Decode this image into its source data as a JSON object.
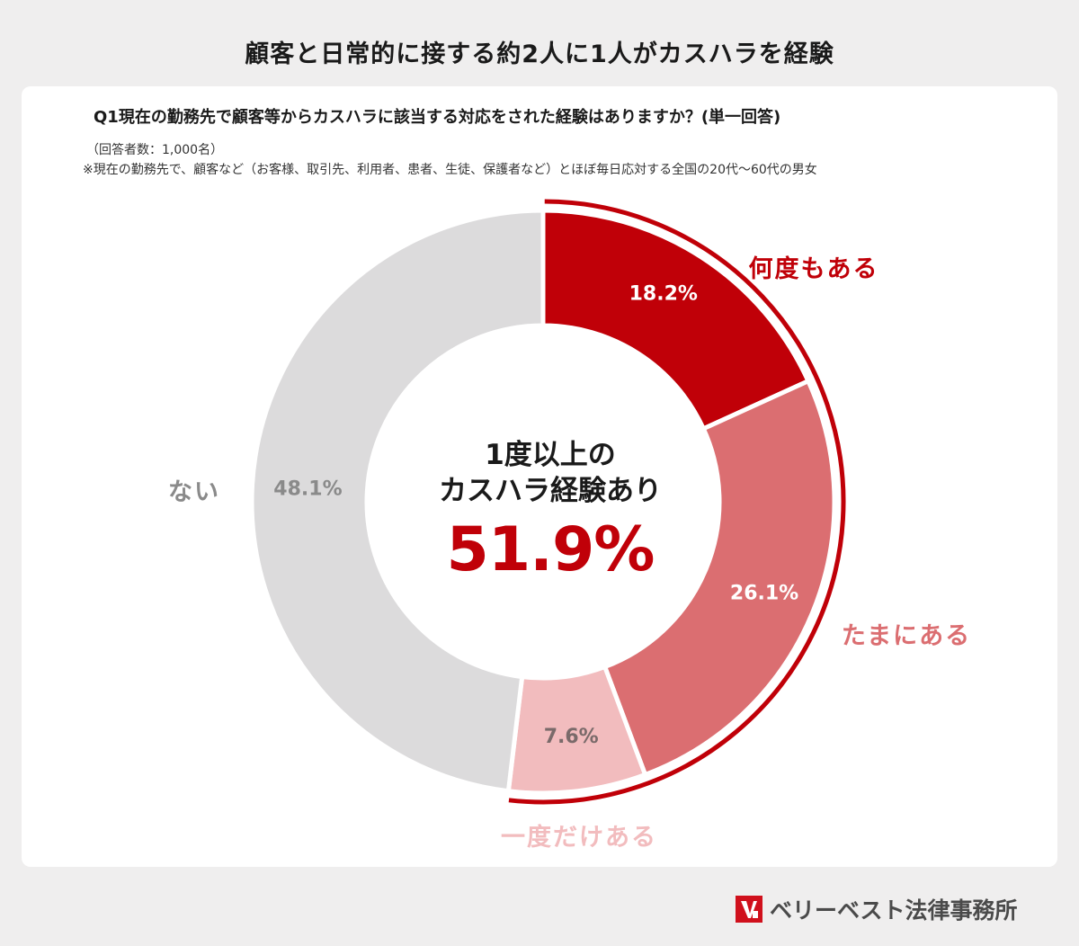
{
  "headline": "顧客と日常的に接する約2人に1人がカスハラを経験",
  "question": "Q1現在の勤務先で顧客等からカスハラに該当する対応をされた経験はありますか？(単一回答)",
  "respondents_note": "（回答者数：1,000名）",
  "population_note": "※現在の勤務先で、顧客など（お客様、取引先、利用者、患者、生徒、保護者など）とほぼ毎日応対する全国の20代〜60代の男女",
  "center": {
    "line1": "1度以上の",
    "line2": "カスハラ経験あり",
    "value": "51.9%"
  },
  "brand": {
    "name": "ベリーベスト法律事務所",
    "logo_icon": "vb-logo-icon",
    "logo_color": "#d0101c"
  },
  "chart_data": {
    "type": "pie",
    "variant": "donut",
    "start": "top, clockwise",
    "slices": [
      {
        "name": "何度もある",
        "value": 18.2,
        "label": "18.2%",
        "color": "#c00008",
        "name_color": "#c00008",
        "value_color": "#ffffff"
      },
      {
        "name": "たまにある",
        "value": 26.1,
        "label": "26.1%",
        "color": "#db6e71",
        "name_color": "#db6e71",
        "value_color": "#ffffff"
      },
      {
        "name": "一度だけある",
        "value": 7.6,
        "label": "7.6%",
        "color": "#f2bcbe",
        "name_color": "#f2bcbe",
        "value_color": "#7a6a6a"
      },
      {
        "name": "ない",
        "value": 48.1,
        "label": "48.1%",
        "color": "#dcdbdc",
        "name_color": "#8a8a8a",
        "value_color": "#8a8a8a"
      }
    ],
    "highlight_total": 51.9,
    "highlight_color": "#c00008"
  }
}
